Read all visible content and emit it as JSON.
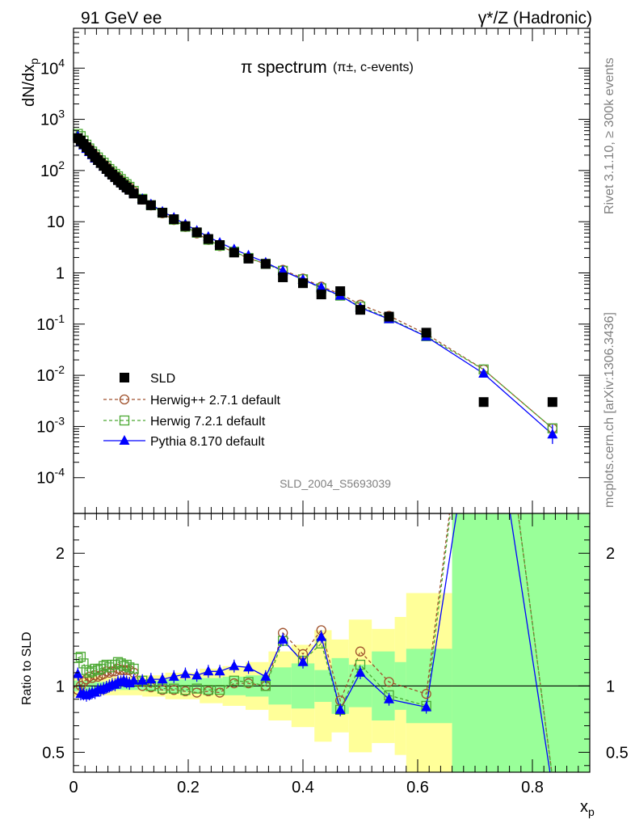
{
  "header": {
    "left": "91 GeV ee",
    "right": "γ*/Z (Hadronic)"
  },
  "side": {
    "rivet": "Rivet 3.1.10, ≥ 300k events",
    "mcplots": "mcplots.cern.ch [arXiv:1306.3436]"
  },
  "chart_data": {
    "type": "line",
    "title": "π spectrum",
    "title_note": "(π±, c-events)",
    "analysis_label": "SLD_2004_S5693039",
    "xlabel": "xp",
    "ylabel_main": "dNdxp",
    "ylabel_ratio": "Ratio to SLD",
    "xlim": [
      0,
      0.9
    ],
    "xticks": [
      0,
      0.2,
      0.4,
      0.6,
      0.8
    ],
    "xtick_labels": [
      "0",
      "0.2",
      "0.4",
      "0.6",
      "0.8"
    ],
    "main_ylim": [
      2e-05,
      60000
    ],
    "main_yscale": "log",
    "main_yticks": [
      {
        "value": 10000,
        "label": "10^4"
      },
      {
        "value": 1000,
        "label": "10^3"
      },
      {
        "value": 100,
        "label": "10^2"
      },
      {
        "value": 10,
        "label": "10"
      },
      {
        "value": 1,
        "label": "1"
      },
      {
        "value": 0.1,
        "label": "10^-1"
      },
      {
        "value": 0.01,
        "label": "10^-2"
      },
      {
        "value": 0.001,
        "label": "10^-3"
      },
      {
        "value": 0.0001,
        "label": "10^-4"
      }
    ],
    "ratio_ylim": [
      0.35,
      2.3
    ],
    "ratio_yticks": [
      0.5,
      1,
      2
    ],
    "ratio_ytick_labels": [
      "0.5",
      "1",
      "2"
    ],
    "legend_position": "bottom-left",
    "bands": {
      "edges": [
        0.0,
        0.04,
        0.08,
        0.12,
        0.16,
        0.22,
        0.26,
        0.3,
        0.34,
        0.38,
        0.42,
        0.45,
        0.48,
        0.52,
        0.56,
        0.58,
        0.66,
        0.9
      ],
      "green": [
        0.04,
        0.03,
        0.03,
        0.04,
        0.05,
        0.06,
        0.07,
        0.08,
        0.14,
        0.17,
        0.12,
        0.21,
        0.16,
        0.26,
        0.18,
        0.28,
        2.0
      ],
      "yellow": [
        0.08,
        0.07,
        0.07,
        0.08,
        0.1,
        0.13,
        0.15,
        0.18,
        0.26,
        0.31,
        0.42,
        0.35,
        0.5,
        0.43,
        0.52,
        0.7,
        2.0
      ]
    },
    "x": [
      0.0075,
      0.0125,
      0.0175,
      0.0225,
      0.0275,
      0.0325,
      0.0375,
      0.0425,
      0.0475,
      0.0525,
      0.0575,
      0.0625,
      0.0675,
      0.0725,
      0.0775,
      0.0825,
      0.0875,
      0.0925,
      0.0975,
      0.105,
      0.12,
      0.135,
      0.155,
      0.175,
      0.195,
      0.215,
      0.235,
      0.255,
      0.28,
      0.305,
      0.335,
      0.365,
      0.4,
      0.432,
      0.465,
      0.5,
      0.55,
      0.615,
      0.715,
      0.835
    ],
    "series": [
      {
        "name": "SLD",
        "color": "#000000",
        "marker": "square",
        "values": [
          430,
          385,
          330,
          285,
          245,
          212,
          182,
          160,
          140,
          123,
          107,
          94,
          83,
          74,
          65,
          58,
          52,
          46.5,
          42,
          35.5,
          27,
          21,
          15,
          11.2,
          8.2,
          6.2,
          4.6,
          3.5,
          2.5,
          1.9,
          1.5,
          0.82,
          0.63,
          0.38,
          0.44,
          0.19,
          0.14,
          0.068,
          0.003,
          0.003
        ]
      },
      {
        "name": "Herwig++ 2.7.1 default",
        "color": "#a0522d",
        "marker": "circle",
        "values": [
          417,
          385,
          340,
          300,
          262,
          225,
          196,
          172,
          151,
          134,
          119,
          103,
          92,
          82,
          74,
          65,
          58,
          52,
          47,
          39,
          27,
          20.8,
          14.6,
          10.8,
          7.9,
          5.9,
          4.4,
          3.34,
          2.55,
          1.94,
          1.5,
          1.15,
          0.78,
          0.54,
          0.39,
          0.24,
          0.145,
          0.064,
          0.013,
          0.00092
        ]
      },
      {
        "name": "Herwig 7.2.1 default",
        "color": "#4aa832",
        "marker": "square-open",
        "values": [
          520,
          470,
          385,
          320,
          270,
          235,
          205,
          180,
          158,
          142,
          124,
          107,
          96,
          86,
          77,
          68,
          60,
          54,
          48,
          40,
          28,
          21,
          15,
          11,
          8,
          6.1,
          4.45,
          3.4,
          2.6,
          1.96,
          1.5,
          1.1,
          0.75,
          0.5,
          0.36,
          0.22,
          0.13,
          0.058,
          0.013,
          0.00092
        ]
      },
      {
        "name": "Pythia 8.170 default",
        "color": "#0000ff",
        "marker": "triangle",
        "values": [
          470,
          360,
          310,
          265,
          230,
          200,
          172,
          155,
          136,
          120,
          106,
          94,
          84,
          75,
          67,
          60,
          54,
          48,
          43,
          37,
          28,
          22,
          15.8,
          12,
          8.9,
          6.7,
          5.1,
          3.9,
          2.9,
          2.2,
          1.6,
          1.1,
          0.74,
          0.52,
          0.36,
          0.21,
          0.125,
          0.057,
          0.0108,
          0.0007
        ]
      }
    ],
    "ratios": [
      {
        "name": "Herwig++ 2.7.1 default",
        "values": [
          0.97,
          1.0,
          1.03,
          1.05,
          1.07,
          1.06,
          1.08,
          1.07,
          1.08,
          1.09,
          1.11,
          1.1,
          1.11,
          1.11,
          1.13,
          1.12,
          1.12,
          1.12,
          1.12,
          1.1,
          1.0,
          0.99,
          0.97,
          0.97,
          0.96,
          0.95,
          0.96,
          0.95,
          1.02,
          1.02,
          1.0,
          1.4,
          1.24,
          1.42,
          0.89,
          1.26,
          1.03,
          0.94,
          4.3,
          0.31
        ]
      },
      {
        "name": "Herwig 7.2.1 default",
        "values": [
          1.21,
          1.22,
          1.17,
          1.12,
          1.1,
          1.11,
          1.13,
          1.12,
          1.13,
          1.15,
          1.16,
          1.14,
          1.16,
          1.16,
          1.18,
          1.17,
          1.15,
          1.16,
          1.14,
          1.13,
          1.04,
          1.0,
          0.98,
          0.98,
          0.97,
          0.98,
          0.97,
          0.97,
          1.04,
          1.03,
          1.0,
          1.34,
          1.19,
          1.32,
          0.82,
          1.16,
          0.93,
          0.85,
          4.3,
          0.31
        ]
      },
      {
        "name": "Pythia 8.170 default",
        "values": [
          1.09,
          0.94,
          0.94,
          0.93,
          0.94,
          0.95,
          0.95,
          0.97,
          0.97,
          0.98,
          0.99,
          1.0,
          1.01,
          1.01,
          1.03,
          1.03,
          1.04,
          1.03,
          1.02,
          1.04,
          1.04,
          1.05,
          1.05,
          1.07,
          1.09,
          1.08,
          1.11,
          1.11,
          1.15,
          1.14,
          1.07,
          1.35,
          1.18,
          1.37,
          0.82,
          1.1,
          0.9,
          0.84,
          3.6,
          0.23
        ]
      }
    ]
  }
}
